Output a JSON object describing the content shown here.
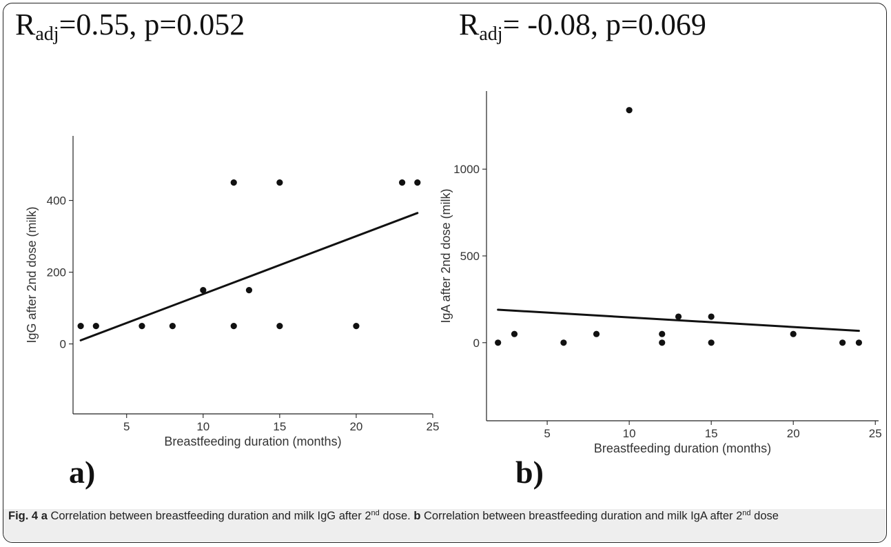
{
  "panels": [
    {
      "stat_prefix": "R",
      "stat_sub": "adj",
      "stat_rest": "=0.55, p=0.052",
      "letter": "a)"
    },
    {
      "stat_prefix": "R",
      "stat_sub": "adj",
      "stat_rest": "= -0.08, p=0.069",
      "letter": "b)"
    }
  ],
  "caption": {
    "fig_label": "Fig. 4",
    "a_label": "a",
    "a_text": "Correlation between breastfeeding duration and milk IgG after 2",
    "a_sup": "nd",
    "a_end": "dose.",
    "b_label": "b",
    "b_text": "Correlation between breastfeeding duration and milk IgA after 2",
    "b_sup": "nd",
    "b_end": "dose"
  },
  "colors": {
    "points": "#111111",
    "line": "#111111",
    "axis": "#222222"
  },
  "chart_data": [
    {
      "type": "scatter",
      "xlabel": "Breastfeeding duration (months)",
      "ylabel": "IgG after 2nd dose (milk)",
      "xlim": [
        1.5,
        25
      ],
      "ylim": [
        -195,
        580
      ],
      "xticks": [
        5,
        10,
        15,
        20,
        25
      ],
      "yticks": [
        0,
        200,
        400
      ],
      "grid": false,
      "points": [
        [
          2,
          50
        ],
        [
          3,
          50
        ],
        [
          6,
          50
        ],
        [
          8,
          50
        ],
        [
          10,
          150
        ],
        [
          12,
          450
        ],
        [
          12,
          50
        ],
        [
          13,
          150
        ],
        [
          15,
          450
        ],
        [
          15,
          50
        ],
        [
          20,
          50
        ],
        [
          23,
          450
        ],
        [
          24,
          450
        ]
      ],
      "fit_line": [
        [
          2,
          10
        ],
        [
          24,
          365
        ]
      ]
    },
    {
      "type": "scatter",
      "xlabel": "Breastfeeding duration (months)",
      "ylabel": "IgA after 2nd dose (milk)",
      "xlim": [
        1.3,
        25.2
      ],
      "ylim": [
        -450,
        1450
      ],
      "xticks": [
        5,
        10,
        15,
        20,
        25
      ],
      "yticks": [
        0,
        500,
        1000
      ],
      "grid": false,
      "points": [
        [
          2,
          0
        ],
        [
          3,
          50
        ],
        [
          6,
          0
        ],
        [
          8,
          50
        ],
        [
          10,
          1340
        ],
        [
          12,
          50
        ],
        [
          12,
          0
        ],
        [
          13,
          150
        ],
        [
          15,
          150
        ],
        [
          15,
          0
        ],
        [
          20,
          50
        ],
        [
          23,
          0
        ],
        [
          24,
          0
        ]
      ],
      "fit_line": [
        [
          2,
          190
        ],
        [
          24,
          68
        ]
      ]
    }
  ]
}
